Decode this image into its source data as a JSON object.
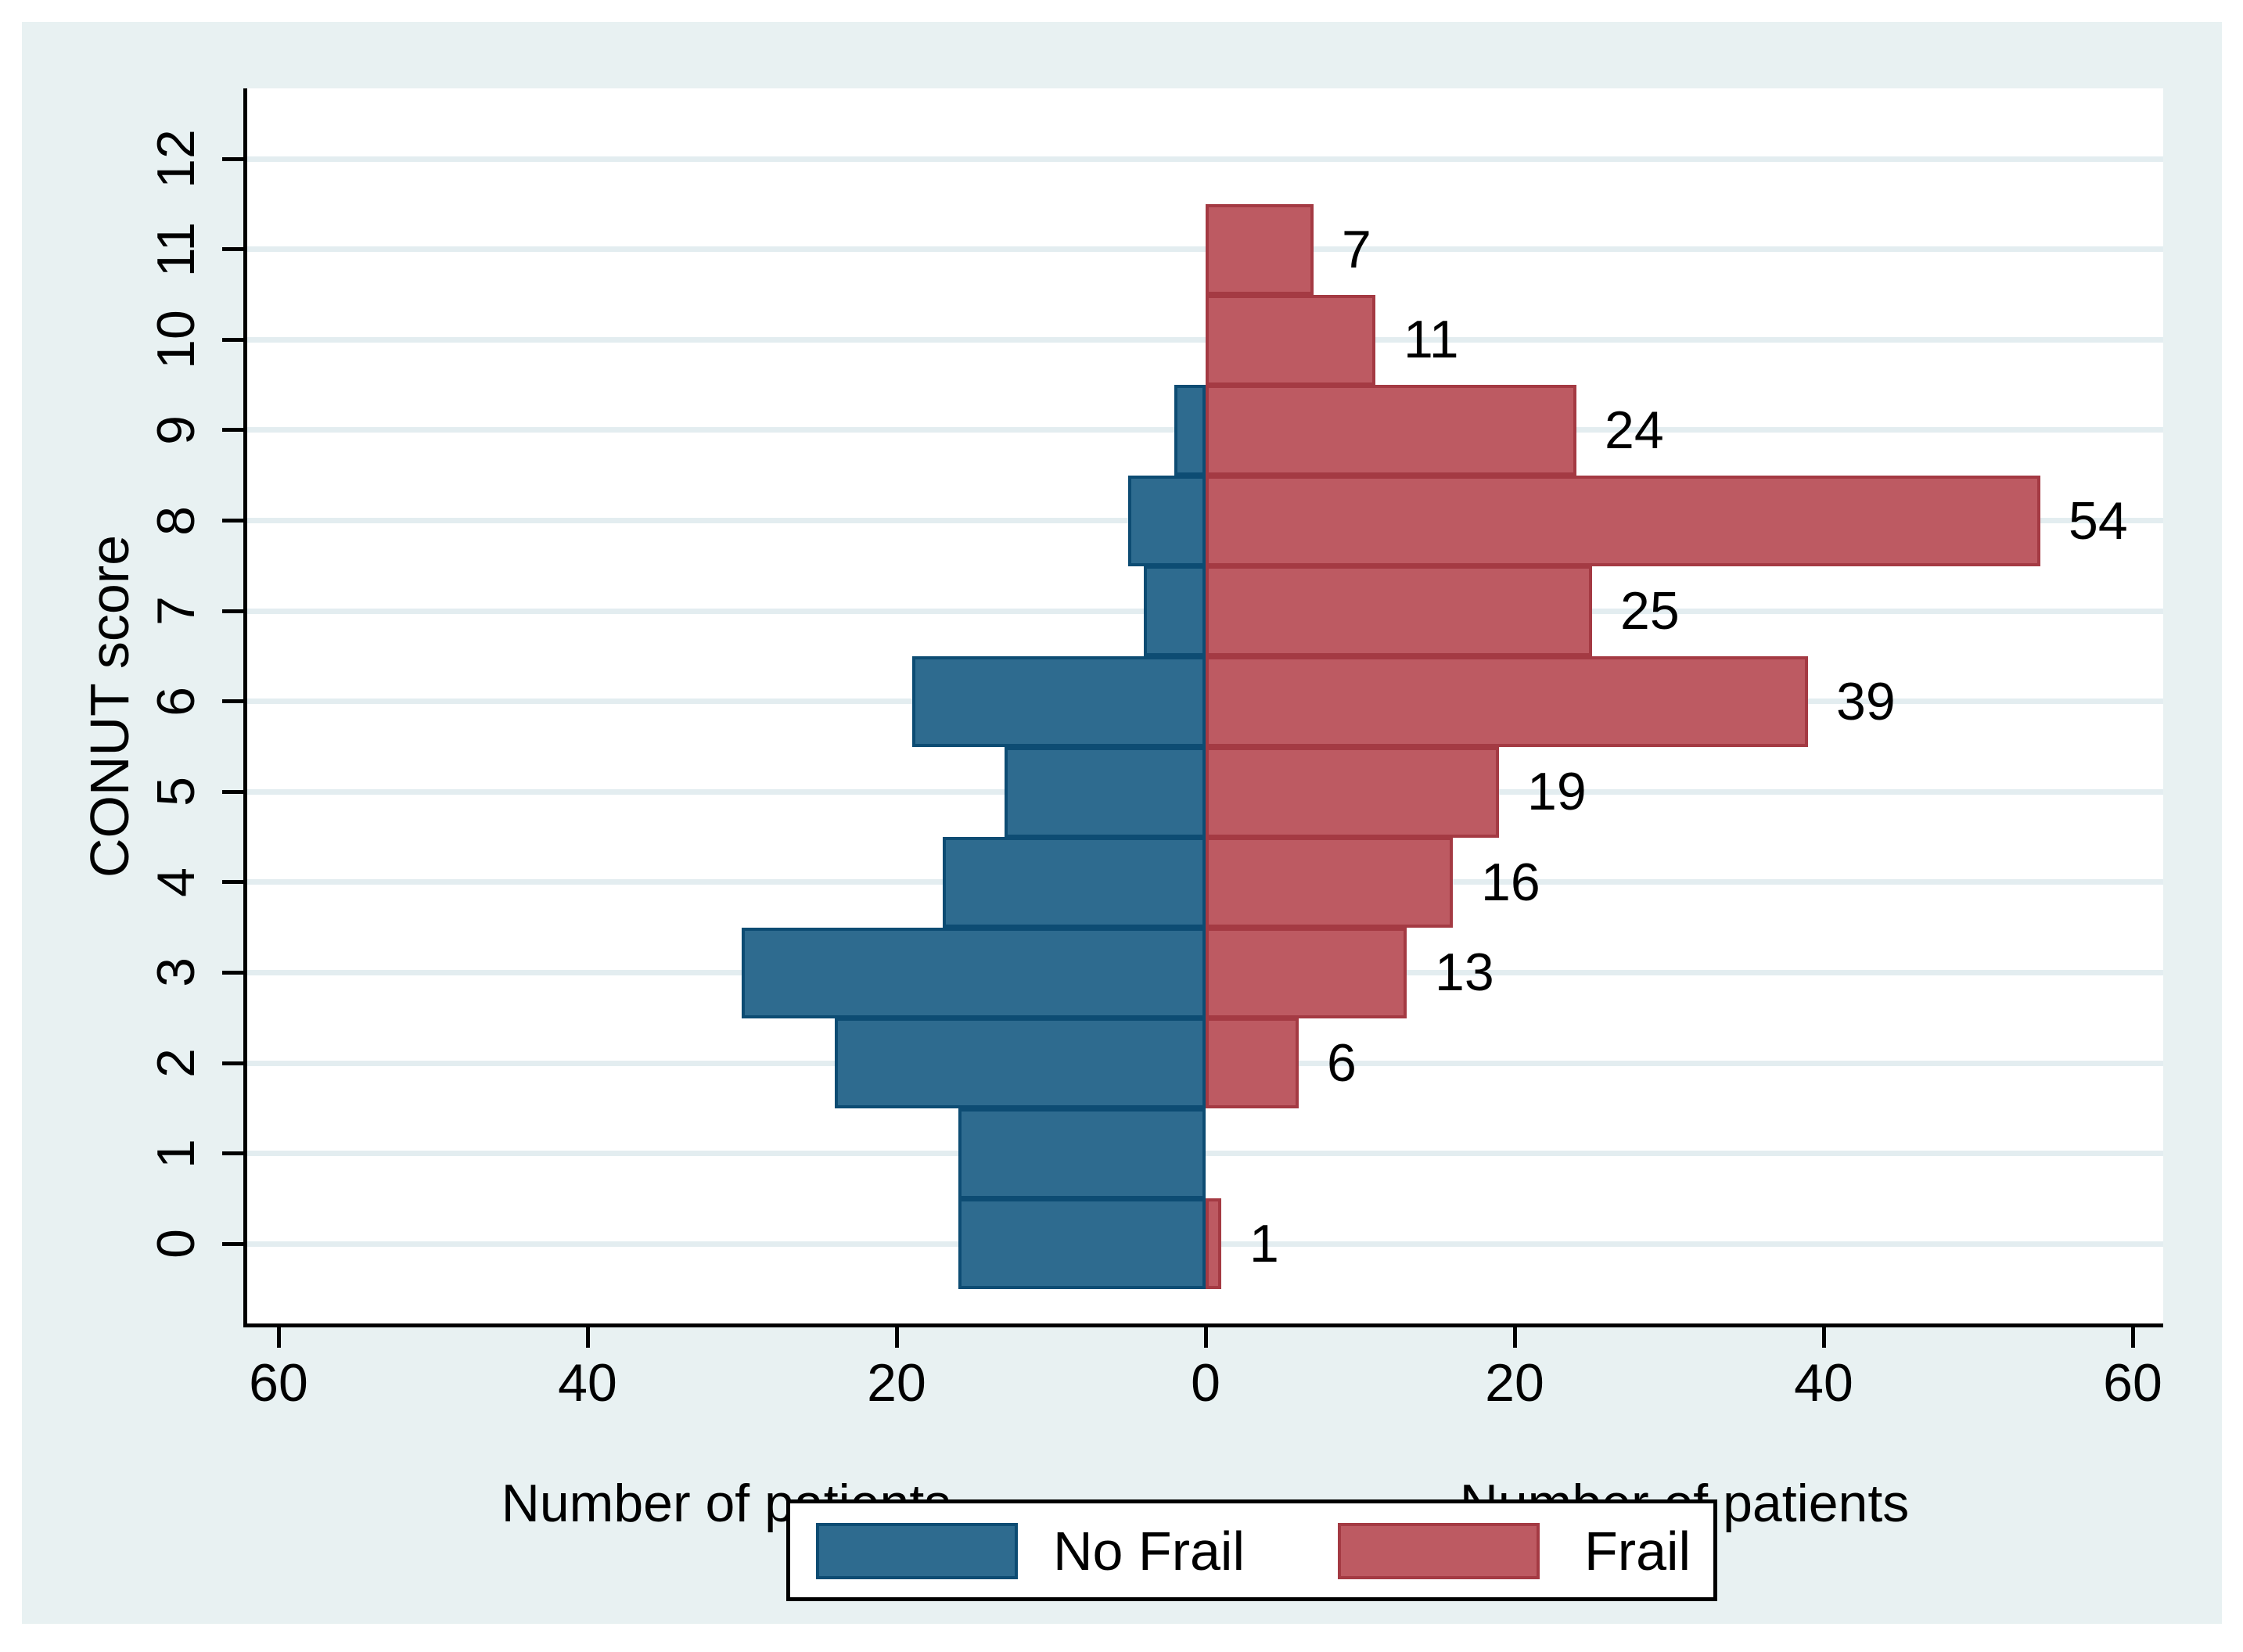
{
  "figure": {
    "page_bg": "#ffffff",
    "canvas_bg": "#e8f1f2",
    "plot_bg": "#ffffff",
    "grid_color": "#e3edf0",
    "axis_color": "#000000",
    "text_color": "#000000"
  },
  "chart_data": {
    "type": "bar",
    "subtype": "population-pyramid-horizontal",
    "title": "",
    "ylabel": "CONUT score",
    "xlabel_left": "Number of patients",
    "xlabel_right": "Number of patients",
    "categories": [
      0,
      1,
      2,
      3,
      4,
      5,
      6,
      7,
      8,
      9,
      10,
      11,
      12
    ],
    "series": [
      {
        "name": "No Frail",
        "side": "left",
        "color": "#2e6b8f",
        "border_color": "#0d4c73",
        "values": [
          16,
          16,
          24,
          30,
          17,
          13,
          19,
          4,
          5,
          2,
          0,
          0,
          0
        ]
      },
      {
        "name": "Frail",
        "side": "right",
        "color": "#bd5a62",
        "border_color": "#a43a43",
        "values": [
          1,
          0,
          6,
          13,
          16,
          19,
          39,
          25,
          54,
          24,
          11,
          7,
          0
        ]
      }
    ],
    "bar_labels": true,
    "x_tick_values": [
      -60,
      -40,
      -20,
      0,
      20,
      40,
      60
    ],
    "x_tick_labels": [
      "60",
      "40",
      "20",
      "0",
      "20",
      "40",
      "60"
    ],
    "y_tick_values": [
      0,
      1,
      2,
      3,
      4,
      5,
      6,
      7,
      8,
      9,
      10,
      11,
      12
    ],
    "y_tick_labels": [
      "0",
      "1",
      "2",
      "3",
      "4",
      "5",
      "6",
      "7",
      "8",
      "9",
      "10",
      "11",
      "12"
    ],
    "xlim": [
      -62,
      62
    ],
    "ylim": [
      -0.88,
      12.78
    ],
    "grid": true,
    "legend_position": "bottom-center"
  },
  "legend": {
    "items": [
      {
        "label": "No Frail",
        "color": "#2e6b8f",
        "border_color": "#0d4c73"
      },
      {
        "label": "Frail",
        "color": "#bd5a62",
        "border_color": "#a43a43"
      }
    ]
  }
}
